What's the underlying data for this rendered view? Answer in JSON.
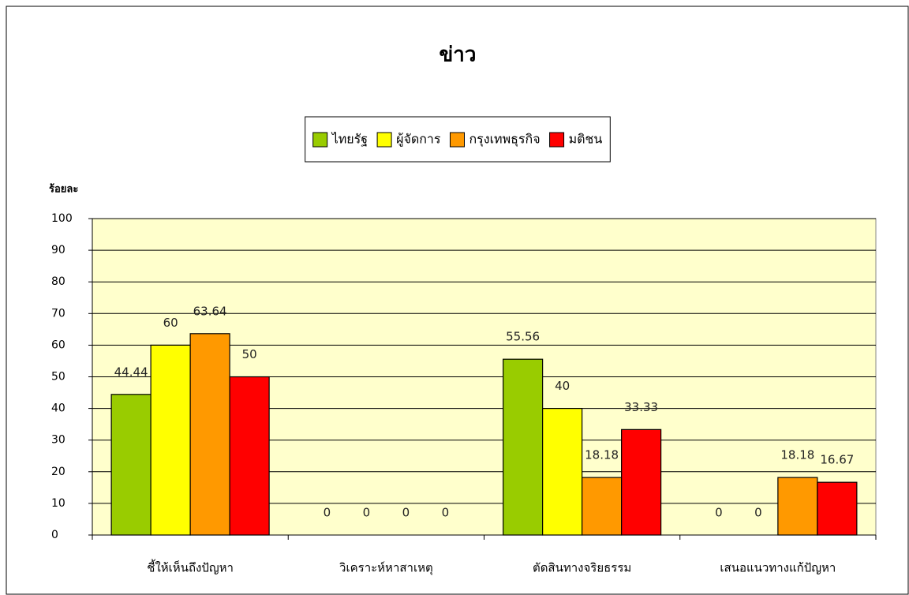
{
  "chart_data": {
    "type": "bar",
    "title": "ข่าว",
    "y_label": "ร้อยละ",
    "categories": [
      "ชี้ให้เห็นถึงปัญหา",
      "วิเคราะห์หาสาเหตุ",
      "ตัดสินทางจริยธรรม",
      "เสนอแนวทางแก้ปัญหา"
    ],
    "series": [
      {
        "name": "ไทยรัฐ",
        "color": "#99cc00",
        "values": [
          44.44,
          0,
          55.56,
          0
        ]
      },
      {
        "name": "ผู้จัดการ",
        "color": "#ffff00",
        "values": [
          60,
          0,
          40,
          0
        ]
      },
      {
        "name": "กรุงเทพธุรกิจ",
        "color": "#ff9900",
        "values": [
          63.64,
          0,
          18.18,
          18.18
        ]
      },
      {
        "name": "มติชน",
        "color": "#ff0000",
        "values": [
          50,
          0,
          33.33,
          16.67
        ]
      }
    ],
    "ylim": [
      0,
      100
    ],
    "yticks": [
      0,
      10,
      20,
      30,
      40,
      50,
      60,
      70,
      80,
      90,
      100
    ],
    "grid": true,
    "legend": "top"
  }
}
